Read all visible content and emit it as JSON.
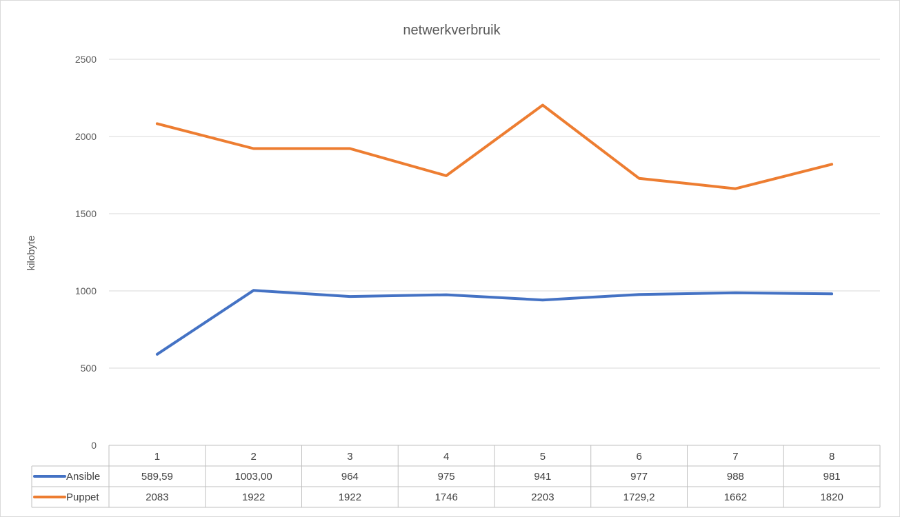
{
  "chart_data": {
    "type": "line",
    "title": "netwerkverbruik",
    "xlabel": "",
    "ylabel": "kilobyte",
    "ylim": [
      0,
      2500
    ],
    "yticks": [
      "0",
      "500",
      "1000",
      "1500",
      "2000",
      "2500"
    ],
    "grid": true,
    "legend": "data-table",
    "categories": [
      "1",
      "2",
      "3",
      "4",
      "5",
      "6",
      "7",
      "8"
    ],
    "series": [
      {
        "name": "Ansible",
        "color": "#4472c4",
        "values": [
          589.59,
          1003.0,
          964,
          975,
          941,
          977,
          988,
          981
        ],
        "labels": [
          "589,59",
          "1003,00",
          "964",
          "975",
          "941",
          "977",
          "988",
          "981"
        ]
      },
      {
        "name": "Puppet",
        "color": "#ed7d31",
        "values": [
          2083,
          1922,
          1922,
          1746,
          2203,
          1729.2,
          1662,
          1820
        ],
        "labels": [
          "2083",
          "1922",
          "1922",
          "1746",
          "2203",
          "1729,2",
          "1662",
          "1820"
        ]
      }
    ]
  }
}
